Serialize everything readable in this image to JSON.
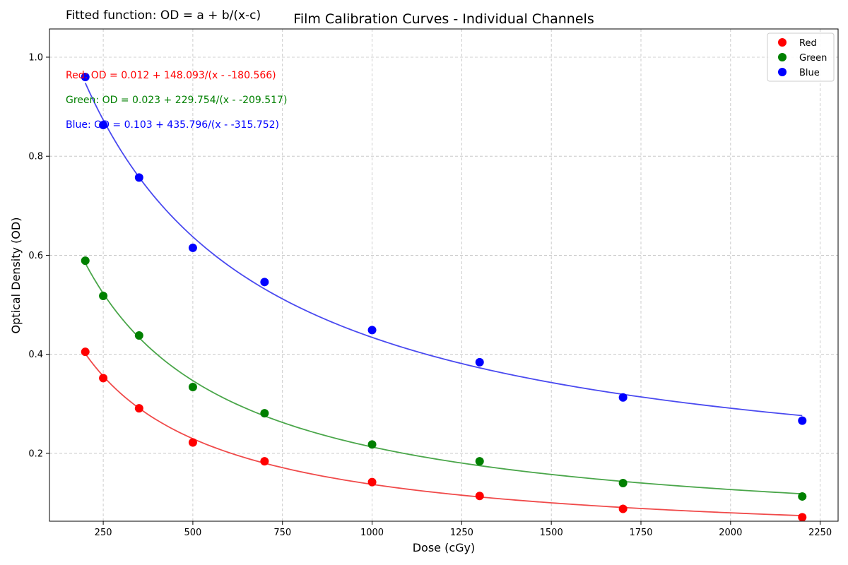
{
  "chart_data": {
    "type": "scatter",
    "title": "Film Calibration Curves - Individual Channels",
    "xlabel": "Dose (cGy)",
    "ylabel": "Optical Density (OD)",
    "xlim": [
      100,
      2300
    ],
    "ylim": [
      0.063,
      1.057
    ],
    "xticks": [
      250,
      500,
      750,
      1000,
      1250,
      1500,
      1750,
      2000,
      2250
    ],
    "yticks": [
      0.2,
      0.4,
      0.6,
      0.8,
      1.0
    ],
    "grid": true,
    "legend_position": "top-right",
    "annotation": "Fitted function: OD = a + b/(x-c)",
    "x": [
      200,
      250,
      350,
      500,
      700,
      1000,
      1300,
      1700,
      2200
    ],
    "series": [
      {
        "name": "Red",
        "color": "#ff0000",
        "line_color": "#f04a4a",
        "values": [
          0.405,
          0.352,
          0.291,
          0.222,
          0.184,
          0.142,
          0.114,
          0.088,
          0.071
        ],
        "fit": {
          "a": 0.012,
          "b": 148.093,
          "c": -180.566
        },
        "equation": "Red: OD = 0.012 + 148.093/(x - -180.566)"
      },
      {
        "name": "Green",
        "color": "#008000",
        "line_color": "#4aa64a",
        "values": [
          0.589,
          0.518,
          0.438,
          0.334,
          0.281,
          0.218,
          0.184,
          0.14,
          0.113
        ],
        "fit": {
          "a": 0.023,
          "b": 229.754,
          "c": -209.517
        },
        "equation": "Green: OD = 0.023 + 229.754/(x - -209.517)"
      },
      {
        "name": "Blue",
        "color": "#0000ff",
        "line_color": "#4a4af0",
        "values": [
          0.96,
          0.863,
          0.757,
          0.615,
          0.546,
          0.449,
          0.384,
          0.313,
          0.266
        ],
        "fit": {
          "a": 0.103,
          "b": 435.796,
          "c": -315.752
        },
        "equation": "Blue: OD = 0.103 + 435.796/(x - -315.752)"
      }
    ]
  }
}
